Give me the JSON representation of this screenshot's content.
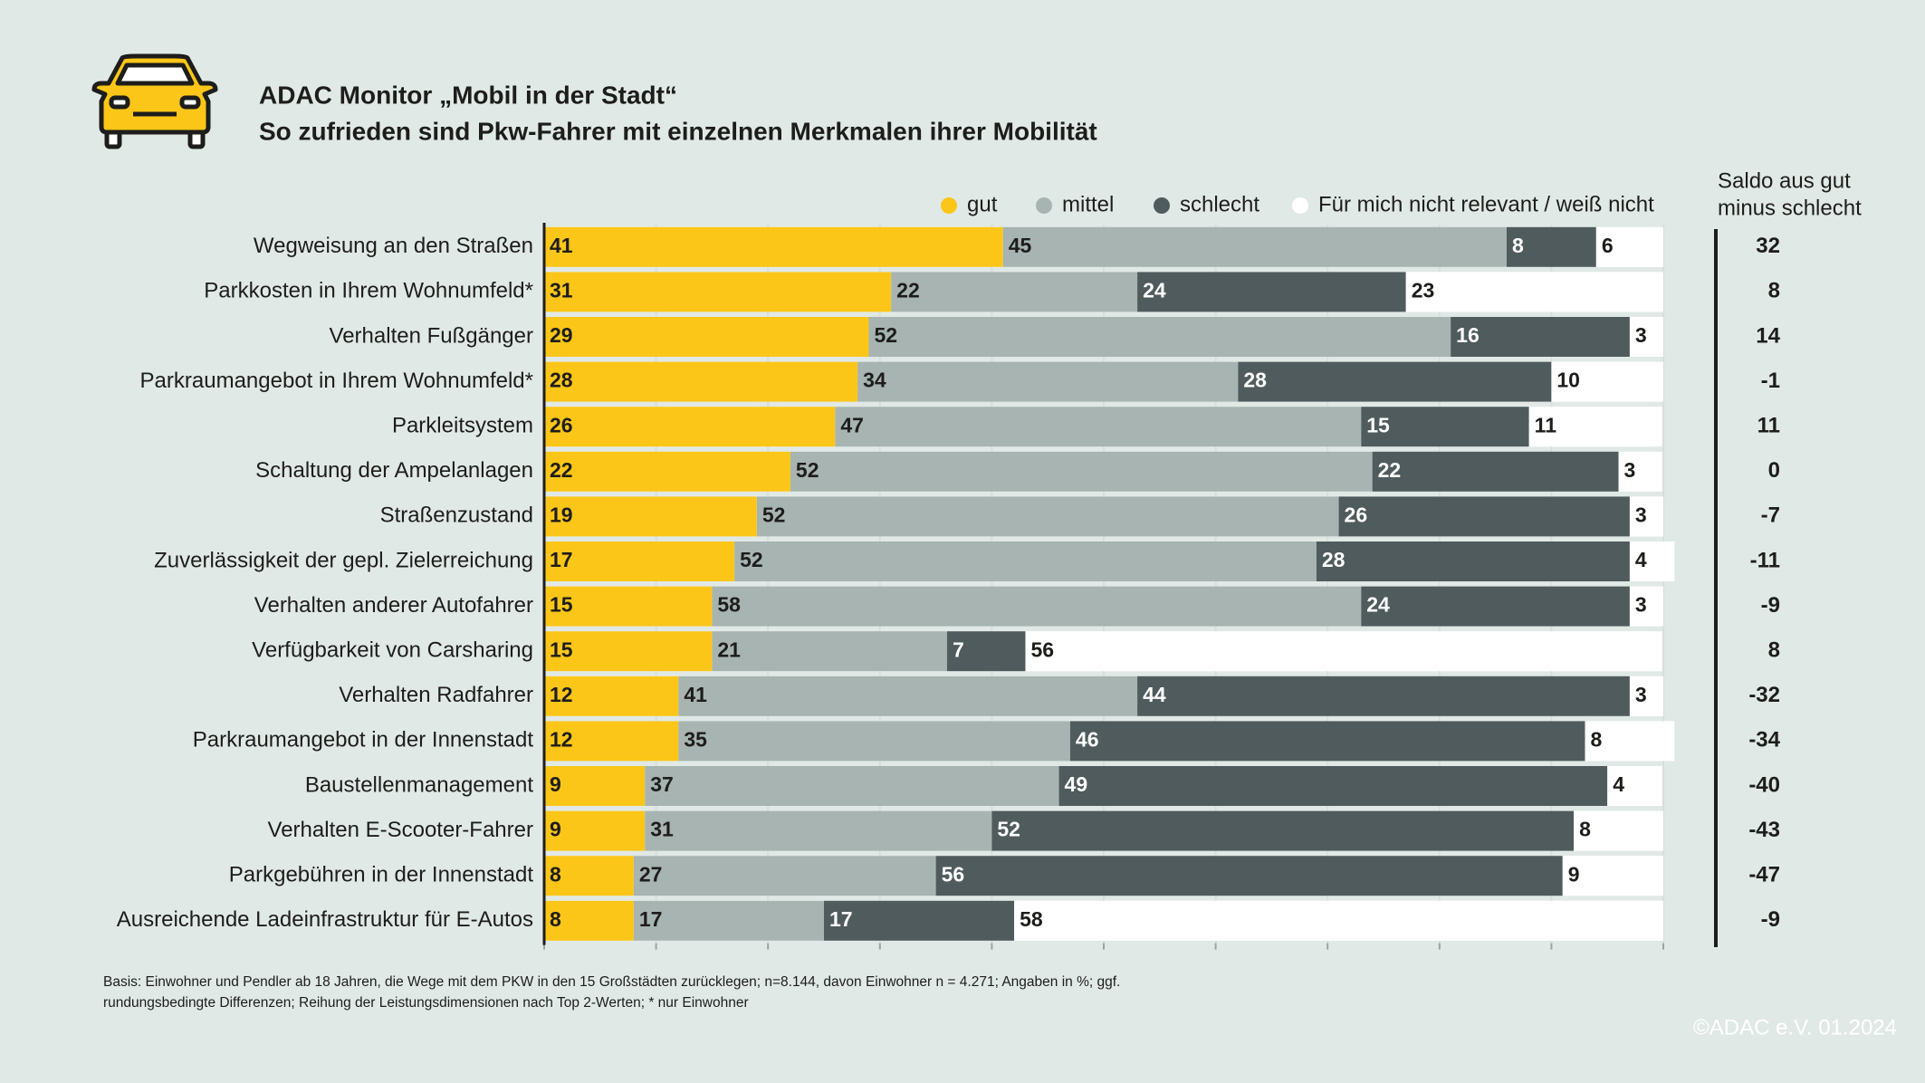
{
  "chart_data": {
    "type": "stacked-bar",
    "title": "ADAC Monitor „Mobil in der Stadt“",
    "subtitle": "So zufrieden sind Pkw-Fahrer mit einzelnen Merkmalen ihrer Mobilität",
    "categories": [
      "Wegweisung an den Straßen",
      "Parkkosten in Ihrem Wohnumfeld*",
      "Verhalten Fußgänger",
      "Parkraumangebot in Ihrem Wohnumfeld*",
      "Parkleitsystem",
      "Schaltung der Ampelanlagen",
      "Straßenzustand",
      "Zuverlässigkeit der gepl. Zielerreichung",
      "Verhalten anderer Autofahrer",
      "Verfügbarkeit von Carsharing",
      "Verhalten Radfahrer",
      "Parkraumangebot in der Innenstadt",
      "Baustellenmanagement",
      "Verhalten E-Scooter-Fahrer",
      "Parkgebühren in der Innenstadt",
      "Ausreichende Ladeinfrastruktur für E-Autos"
    ],
    "series": [
      {
        "name": "gut",
        "color": "#fbc618",
        "values": [
          41,
          31,
          29,
          28,
          26,
          22,
          19,
          17,
          15,
          15,
          12,
          12,
          9,
          9,
          8,
          8
        ]
      },
      {
        "name": "mittel",
        "color": "#a7b4b1",
        "values": [
          45,
          22,
          52,
          34,
          47,
          52,
          52,
          52,
          58,
          21,
          41,
          35,
          37,
          31,
          27,
          17
        ]
      },
      {
        "name": "schlecht",
        "color": "#4f5b5c",
        "values": [
          8,
          24,
          16,
          28,
          15,
          22,
          26,
          28,
          24,
          7,
          44,
          46,
          49,
          52,
          56,
          17
        ]
      },
      {
        "name": "Für mich nicht relevant / weiß nicht",
        "color": "#ffffff",
        "values": [
          6,
          23,
          3,
          10,
          11,
          3,
          3,
          4,
          3,
          56,
          3,
          8,
          4,
          8,
          9,
          58
        ]
      }
    ],
    "xlim": [
      0,
      100
    ],
    "xticks": [
      0,
      10,
      20,
      30,
      40,
      50,
      60,
      70,
      80,
      90,
      100
    ],
    "grid": true,
    "saldo": {
      "title": [
        "Saldo aus gut",
        "minus schlecht"
      ],
      "values": [
        32,
        8,
        14,
        -1,
        11,
        0,
        -7,
        -11,
        -9,
        8,
        -32,
        -34,
        -40,
        -43,
        -47,
        -9
      ]
    },
    "footnote": [
      "Basis: Einwohner und Pendler ab 18 Jahren, die Wege mit dem PKW in den 15 Großstädten zurücklegen;  n=8.144, davon Einwohner n = 4.271; Angaben in %; ggf.",
      "rundungsbedingte Differenzen; Reihung der Leistungsdimensionen nach Top 2-Werten; * nur Einwohner"
    ],
    "copyright": "©ADAC e.V.  01.2024"
  }
}
